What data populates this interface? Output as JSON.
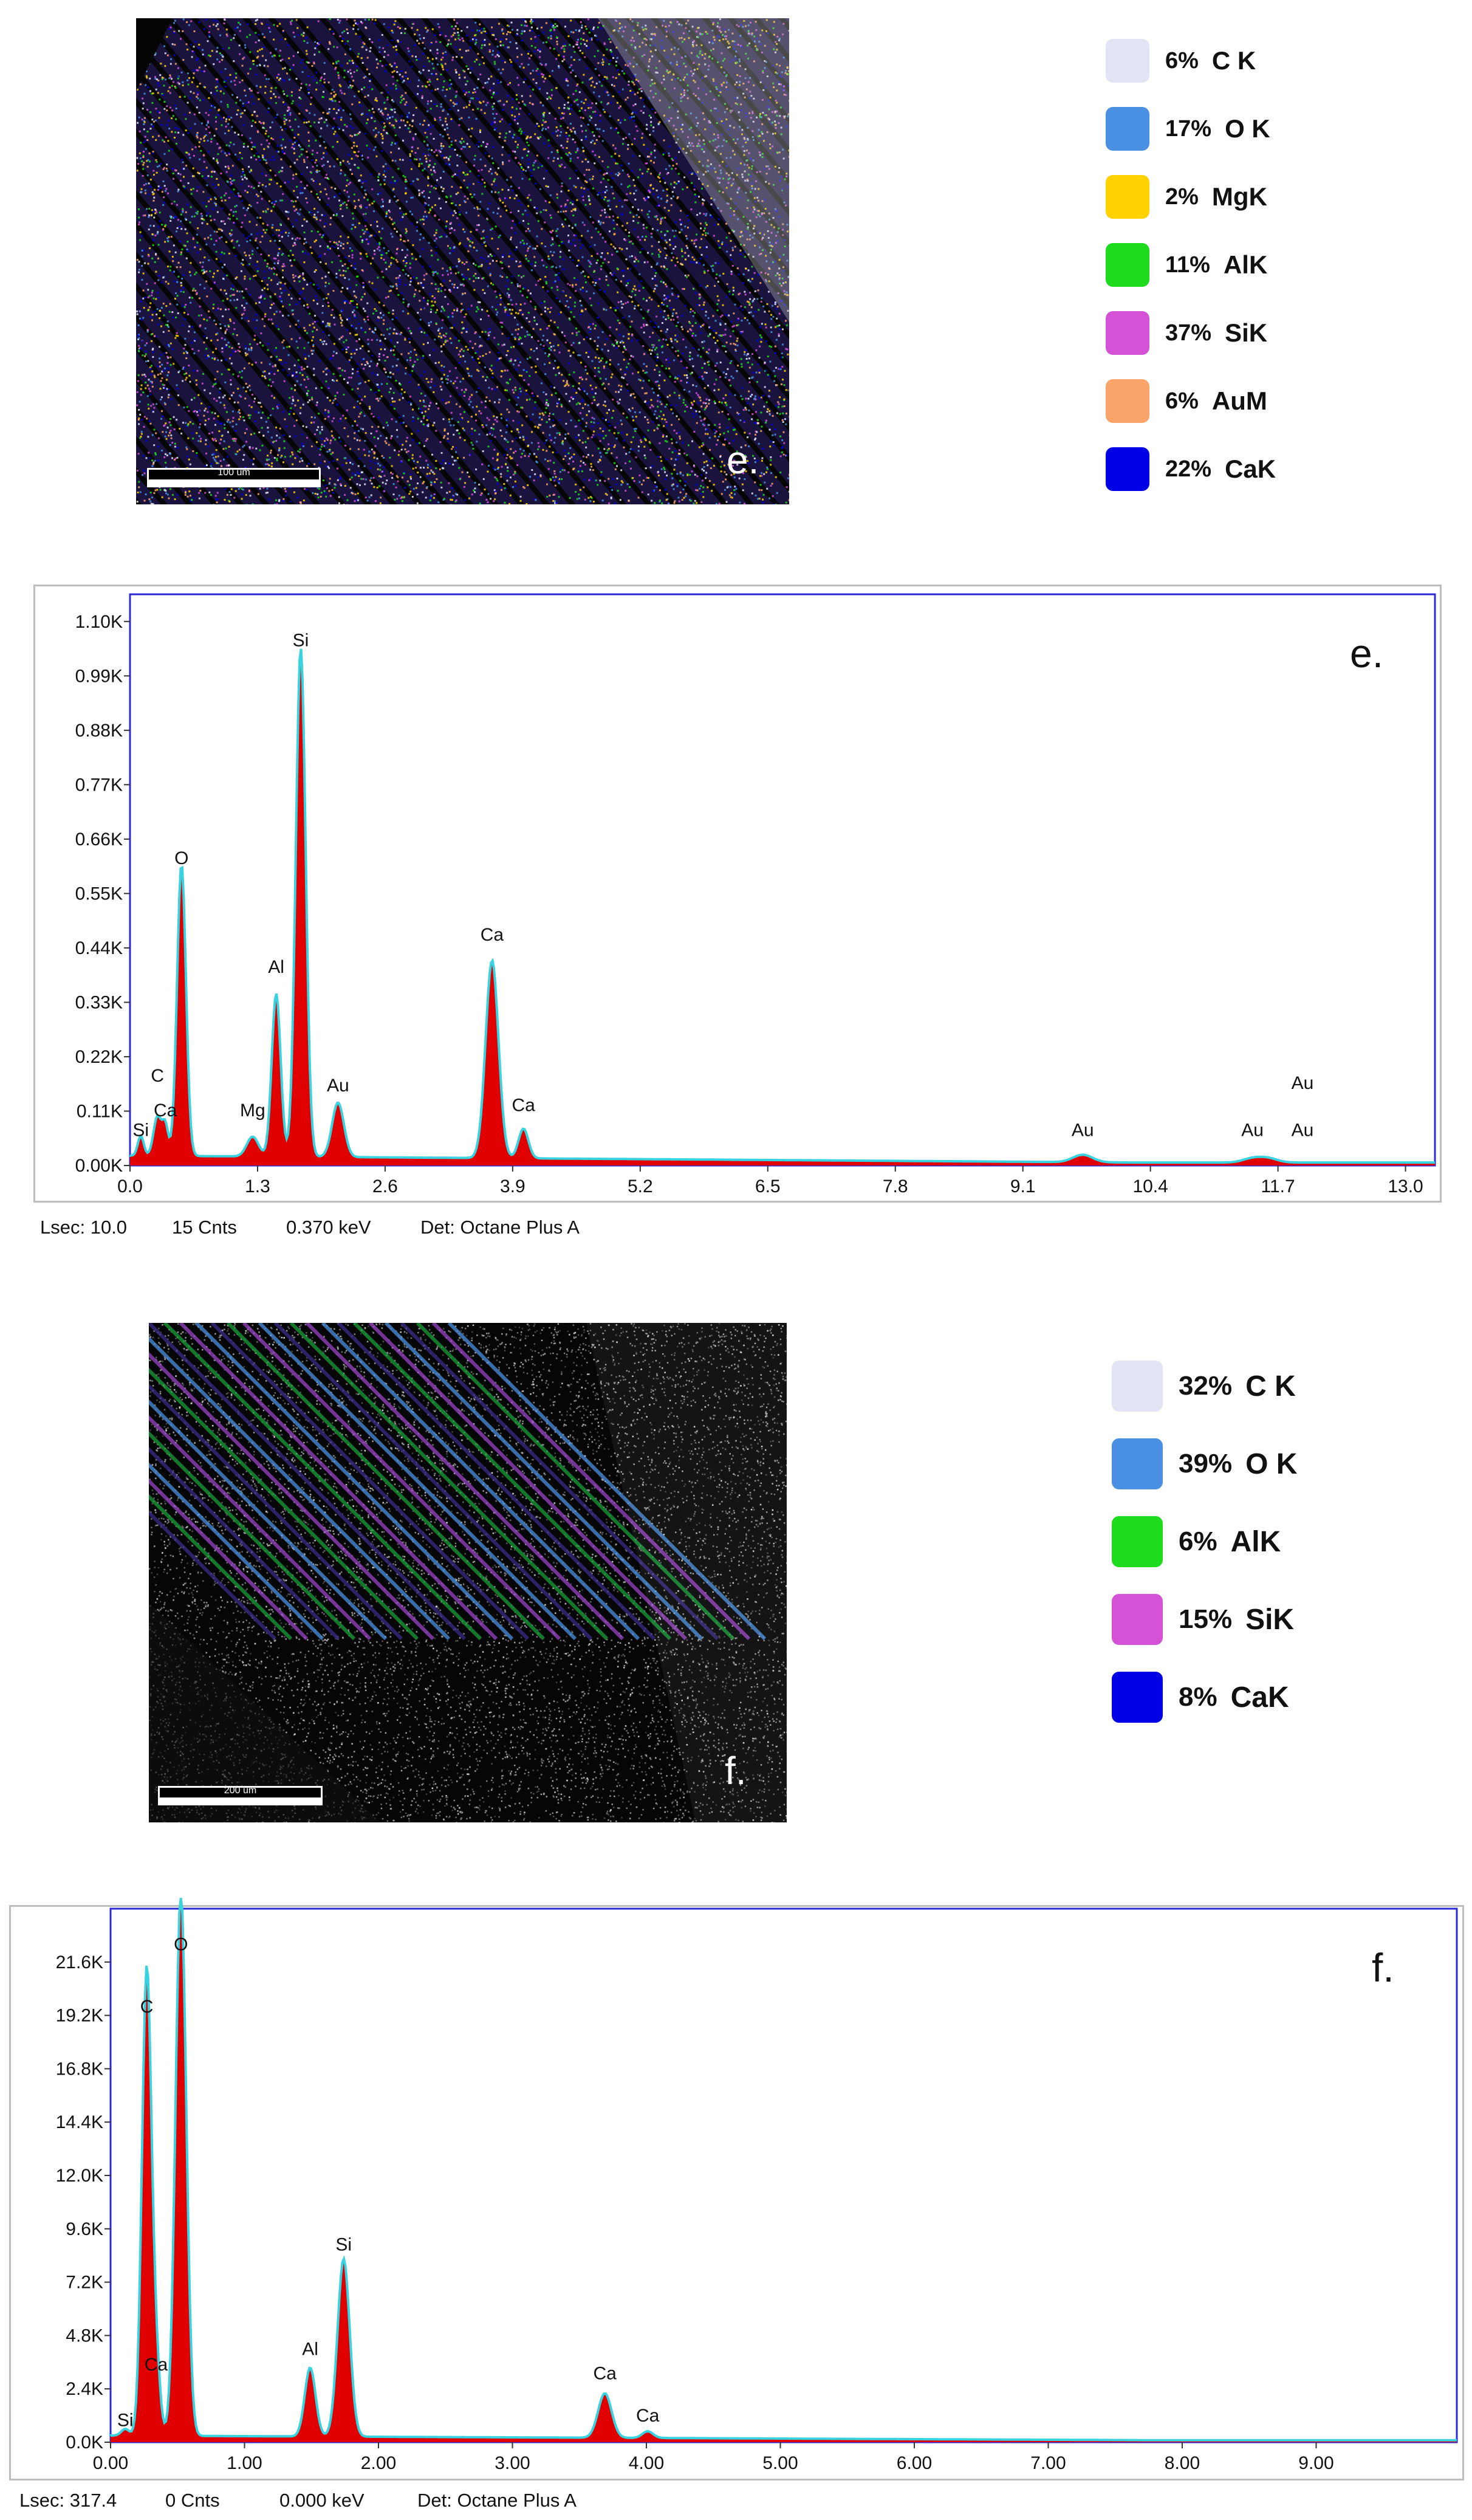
{
  "map_e": {
    "panel_letter": "e.",
    "scale_label": "100 um"
  },
  "legend_e": [
    {
      "pct": "6%",
      "element": "C K",
      "color": "#e2e4f5"
    },
    {
      "pct": "17%",
      "element": "O K",
      "color": "#4a90e2"
    },
    {
      "pct": "2%",
      "element": "MgK",
      "color": "#ffd200"
    },
    {
      "pct": "11%",
      "element": "AlK",
      "color": "#1edb1e"
    },
    {
      "pct": "37%",
      "element": "SiK",
      "color": "#d452d6"
    },
    {
      "pct": "6%",
      "element": "AuM",
      "color": "#f8a46a"
    },
    {
      "pct": "22%",
      "element": "CaK",
      "color": "#0000e4"
    }
  ],
  "map_f": {
    "panel_letter": "f.",
    "scale_label": "200 um"
  },
  "legend_f": [
    {
      "pct": "32%",
      "element": "C K",
      "color": "#e2e4f5"
    },
    {
      "pct": "39%",
      "element": "O K",
      "color": "#4a90e2"
    },
    {
      "pct": "6%",
      "element": "AlK",
      "color": "#1edb1e"
    },
    {
      "pct": "15%",
      "element": "SiK",
      "color": "#d452d6"
    },
    {
      "pct": "8%",
      "element": "CaK",
      "color": "#0000e4"
    }
  ],
  "chart_data": [
    {
      "type": "line",
      "panel_letter": "e.",
      "x_ticks": [
        "0.0",
        "1.3",
        "2.6",
        "3.9",
        "5.2",
        "6.5",
        "7.8",
        "9.1",
        "10.4",
        "11.7",
        "13.0"
      ],
      "y_ticks": [
        "0.00K",
        "0.11K",
        "0.22K",
        "0.33K",
        "0.44K",
        "0.55K",
        "0.66K",
        "0.77K",
        "0.88K",
        "0.99K",
        "1.10K"
      ],
      "xlim": [
        0,
        13.3
      ],
      "ylim": [
        0,
        1.155
      ],
      "fill_color": "#e00000",
      "line_color": "#38d3e0",
      "peaks": [
        {
          "x": 0.11,
          "y": 0.04,
          "w": 0.03
        },
        {
          "x": 0.28,
          "y": 0.08,
          "w": 0.04
        },
        {
          "x": 0.36,
          "y": 0.06,
          "w": 0.03
        },
        {
          "x": 0.525,
          "y": 0.59,
          "w": 0.045
        },
        {
          "x": 1.25,
          "y": 0.04,
          "w": 0.06
        },
        {
          "x": 1.49,
          "y": 0.33,
          "w": 0.045
        },
        {
          "x": 1.74,
          "y": 1.03,
          "w": 0.05
        },
        {
          "x": 2.12,
          "y": 0.11,
          "w": 0.06
        },
        {
          "x": 3.69,
          "y": 0.4,
          "w": 0.065
        },
        {
          "x": 4.01,
          "y": 0.06,
          "w": 0.05
        },
        {
          "x": 9.71,
          "y": 0.015,
          "w": 0.1
        },
        {
          "x": 11.44,
          "y": 0.008,
          "w": 0.1
        },
        {
          "x": 11.6,
          "y": 0.008,
          "w": 0.1
        }
      ],
      "baseline": 0.02,
      "peak_labels": [
        {
          "text": "Si",
          "x": 0.11,
          "y": 0.045
        },
        {
          "text": "C",
          "x": 0.28,
          "y": 0.155
        },
        {
          "text": "Ca",
          "x": 0.36,
          "y": 0.085
        },
        {
          "text": "O",
          "x": 0.525,
          "y": 0.595
        },
        {
          "text": "Mg",
          "x": 1.25,
          "y": 0.085
        },
        {
          "text": "Al",
          "x": 1.49,
          "y": 0.375
        },
        {
          "text": "Si",
          "x": 1.74,
          "y": 1.035
        },
        {
          "text": "Au",
          "x": 2.12,
          "y": 0.135
        },
        {
          "text": "Ca",
          "x": 3.69,
          "y": 0.44
        },
        {
          "text": "Ca",
          "x": 4.01,
          "y": 0.095
        },
        {
          "text": "Au",
          "x": 9.71,
          "y": 0.045
        },
        {
          "text": "Au",
          "x": 11.95,
          "y": 0.14
        },
        {
          "text": "Au",
          "x": 11.44,
          "y": 0.045
        },
        {
          "text": "Au",
          "x": 11.95,
          "y": 0.045
        }
      ],
      "footer": {
        "lsec": "Lsec: 10.0",
        "cnts": "15 Cnts",
        "kev": "0.370 keV",
        "det": "Det: Octane Plus A"
      }
    },
    {
      "type": "line",
      "panel_letter": "f.",
      "x_ticks": [
        "0.00",
        "1.00",
        "2.00",
        "3.00",
        "4.00",
        "5.00",
        "6.00",
        "7.00",
        "8.00",
        "9.00"
      ],
      "y_ticks": [
        "0.0K",
        "2.4K",
        "4.8K",
        "7.2K",
        "9.6K",
        "12.0K",
        "14.4K",
        "16.8K",
        "19.2K",
        "21.6K"
      ],
      "xlim": [
        0,
        10.05
      ],
      "ylim": [
        0,
        24.0
      ],
      "fill_color": "#e00000",
      "line_color": "#38d3e0",
      "peaks": [
        {
          "x": 0.11,
          "y": 0.3,
          "w": 0.03
        },
        {
          "x": 0.27,
          "y": 21.0,
          "w": 0.035
        },
        {
          "x": 0.34,
          "y": 3.0,
          "w": 0.03
        },
        {
          "x": 0.525,
          "y": 24.5,
          "w": 0.04
        },
        {
          "x": 1.49,
          "y": 3.1,
          "w": 0.04
        },
        {
          "x": 1.74,
          "y": 8.0,
          "w": 0.045
        },
        {
          "x": 3.69,
          "y": 2.0,
          "w": 0.05
        },
        {
          "x": 4.01,
          "y": 0.3,
          "w": 0.04
        }
      ],
      "baseline": 0.3,
      "peak_labels": [
        {
          "text": "Si",
          "x": 0.11,
          "y": 0.4
        },
        {
          "text": "C",
          "x": 0.27,
          "y": 19.0
        },
        {
          "text": "Ca",
          "x": 0.34,
          "y": 2.9
        },
        {
          "text": "O",
          "x": 0.525,
          "y": 21.8
        },
        {
          "text": "Al",
          "x": 1.49,
          "y": 3.6
        },
        {
          "text": "Si",
          "x": 1.74,
          "y": 8.3
        },
        {
          "text": "Ca",
          "x": 3.69,
          "y": 2.5
        },
        {
          "text": "Ca",
          "x": 4.01,
          "y": 0.6
        }
      ],
      "footer": {
        "lsec": "Lsec: 317.4",
        "cnts": "0 Cnts",
        "kev": "0.000 keV",
        "det": "Det: Octane Plus A"
      }
    }
  ]
}
